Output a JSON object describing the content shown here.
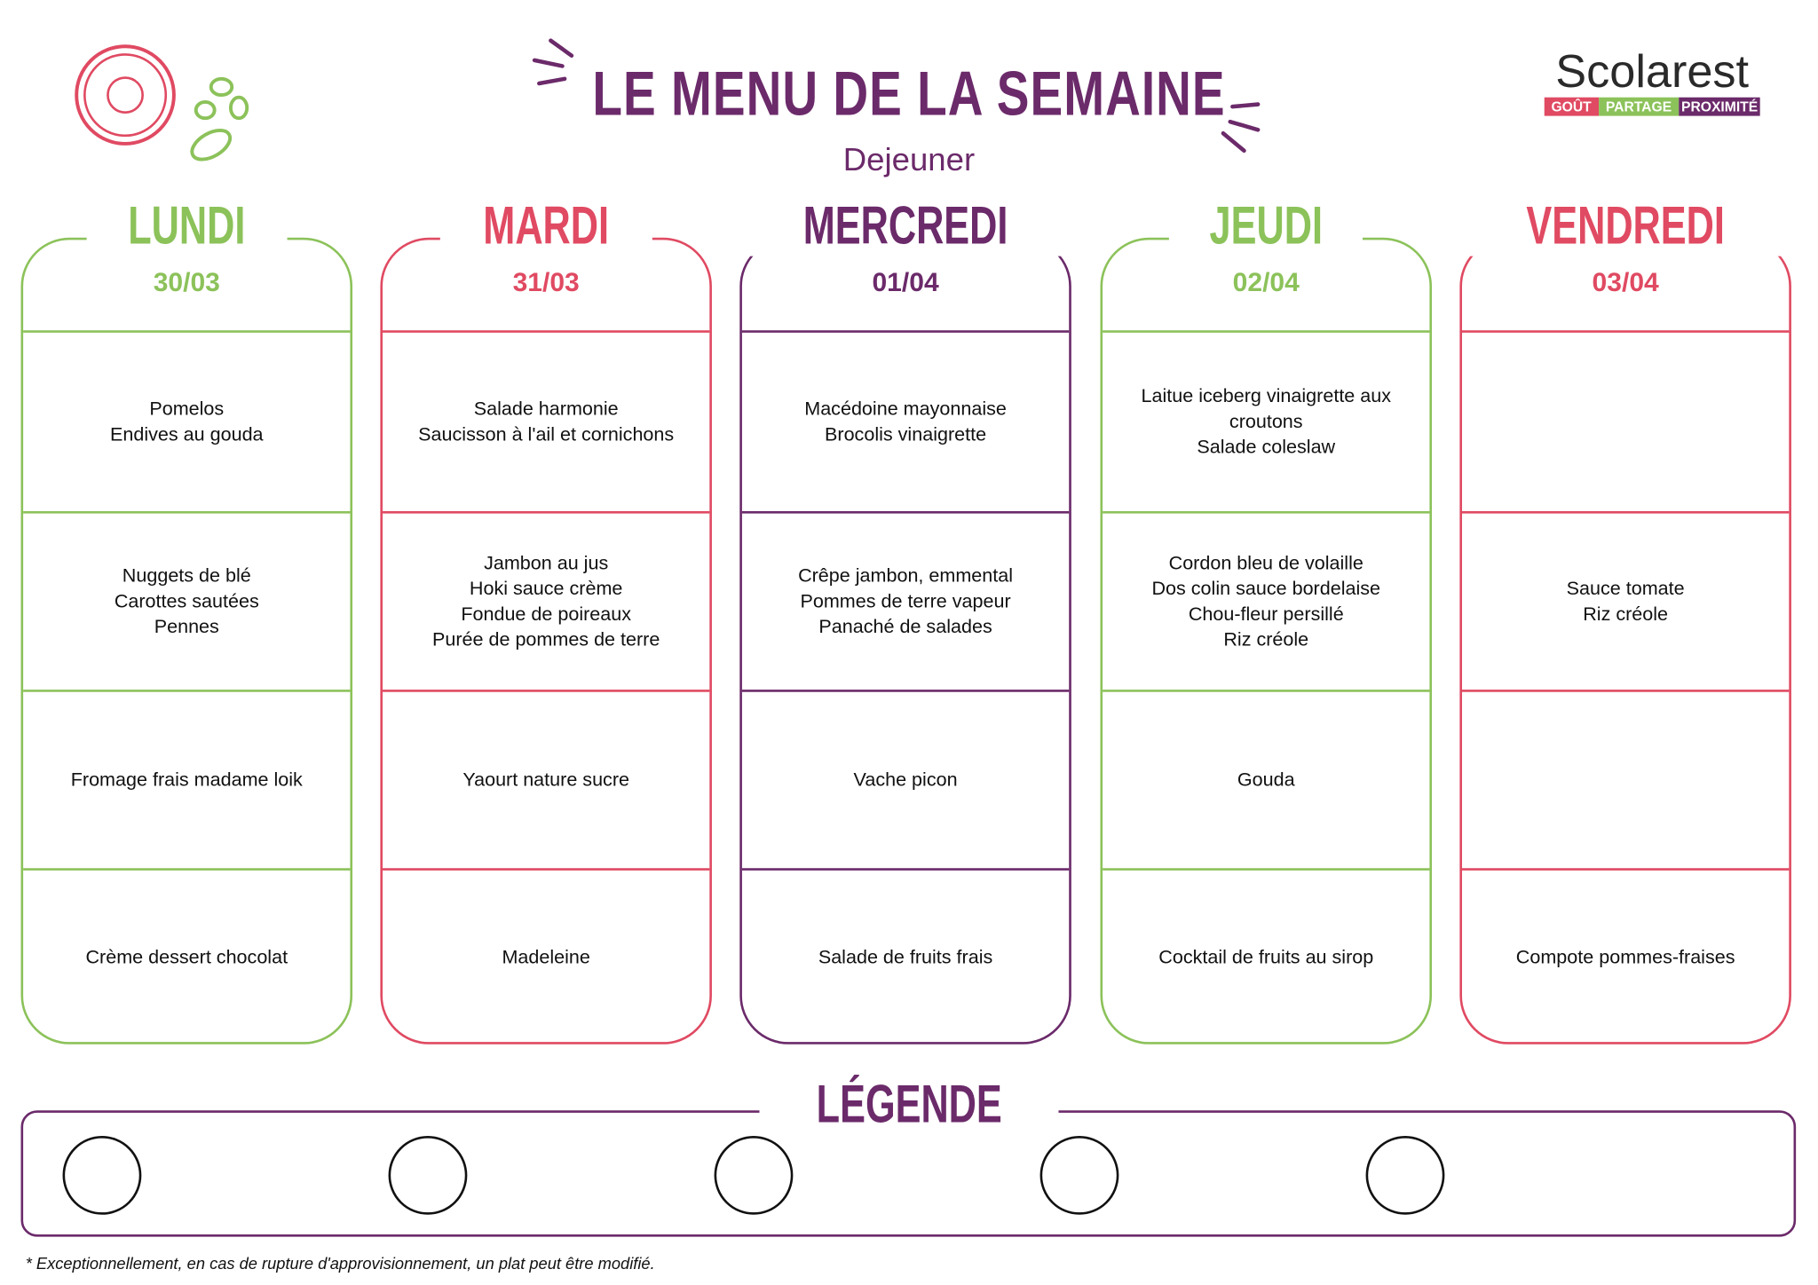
{
  "header": {
    "title": "LE MENU DE LA SEMAINE",
    "subtitle": "Dejeuner",
    "logo": {
      "brand": "Scolarest",
      "tags": [
        "GOÛT",
        "PARTAGE",
        "PROXIMITÉ"
      ]
    }
  },
  "colors": {
    "green": "#8cc25a",
    "red": "#e04a62",
    "purple": "#6b2a6a"
  },
  "days": [
    {
      "name": "LUNDI",
      "date": "30/03",
      "color": "green",
      "rows": [
        [
          "Pomelos",
          "Endives au gouda"
        ],
        [
          "Nuggets de blé",
          "Carottes sautées",
          "Pennes"
        ],
        [
          "Fromage frais madame loik"
        ],
        [
          "Crème dessert chocolat"
        ]
      ]
    },
    {
      "name": "MARDI",
      "date": "31/03",
      "color": "red",
      "rows": [
        [
          "Salade harmonie",
          "Saucisson à l'ail et cornichons"
        ],
        [
          "Jambon au jus",
          "Hoki sauce crème",
          "Fondue de poireaux",
          "Purée de pommes de terre"
        ],
        [
          "Yaourt nature sucre"
        ],
        [
          "Madeleine"
        ]
      ]
    },
    {
      "name": "MERCREDI",
      "date": "01/04",
      "color": "purple",
      "rows": [
        [
          "Macédoine mayonnaise",
          "Brocolis vinaigrette"
        ],
        [
          "Crêpe jambon, emmental",
          "Pommes de terre vapeur",
          "Panaché de salades"
        ],
        [
          "Vache picon"
        ],
        [
          "Salade de fruits frais"
        ]
      ]
    },
    {
      "name": "JEUDI",
      "date": "02/04",
      "color": "green",
      "rows": [
        [
          "Laitue iceberg vinaigrette aux croutons",
          "Salade coleslaw"
        ],
        [
          "Cordon bleu de volaille",
          "Dos colin sauce bordelaise",
          "Chou-fleur persillé",
          "Riz créole"
        ],
        [
          "Gouda"
        ],
        [
          "Cocktail de fruits au sirop"
        ]
      ]
    },
    {
      "name": "VENDREDI",
      "date": "03/04",
      "color": "red",
      "rows": [
        [],
        [
          "Sauce tomate",
          "Riz créole"
        ],
        [],
        [
          "Compote pommes-fraises"
        ]
      ]
    }
  ],
  "legend": {
    "title": "LÉGENDE",
    "slots": 5
  },
  "footnote": "* Exceptionnellement, en cas de rupture d'approvisionnement, un plat peut être modifié."
}
